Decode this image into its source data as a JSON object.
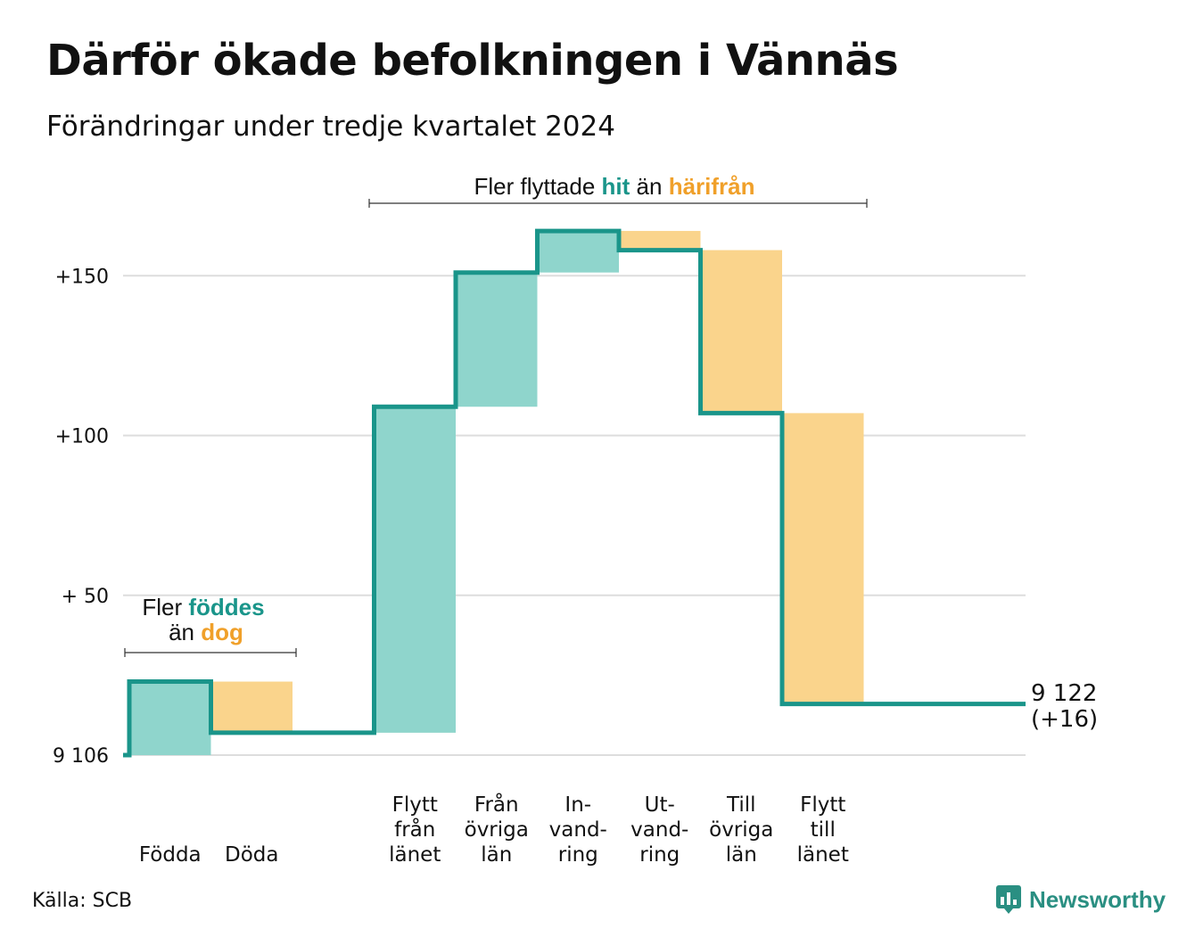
{
  "title": "Därför ökade befolkningen i Vännäs",
  "subtitle": "Förändringar under tredje kvartalet 2024",
  "source": "Källa: SCB",
  "logo": {
    "text": "Newsworthy",
    "icon": "newsworthy-logo-icon",
    "color": "#2a8f82"
  },
  "colors": {
    "increase": "#8fd5cc",
    "decrease": "#fad48c",
    "line": "#1a958a",
    "grid": "#dddddd"
  },
  "annotations": {
    "births": {
      "line1_prefix": "Fler ",
      "line1_highlight": "föddes",
      "line2_prefix": "än ",
      "line2_highlight": "dog"
    },
    "migration": {
      "prefix": "Fler flyttade ",
      "highlight1": "hit",
      "middle": " än ",
      "highlight2": "härifrån"
    }
  },
  "chart_data": {
    "type": "waterfall",
    "base_value": 9106,
    "y_ticks": [
      {
        "value": 0,
        "label": "9 106"
      },
      {
        "value": 50,
        "label": "+ 50"
      },
      {
        "value": 100,
        "label": "+100"
      },
      {
        "value": 150,
        "label": "+150"
      }
    ],
    "steps": [
      {
        "label_lines": [
          "Födda"
        ],
        "delta": 23,
        "group": "births"
      },
      {
        "label_lines": [
          "Döda"
        ],
        "delta": -16,
        "group": "births"
      },
      {
        "label_lines": [],
        "delta": 0,
        "group": "gap"
      },
      {
        "label_lines": [
          "Flytt",
          "från",
          "länet"
        ],
        "delta": 102,
        "group": "migration"
      },
      {
        "label_lines": [
          "Från",
          "övriga",
          "län"
        ],
        "delta": 42,
        "group": "migration"
      },
      {
        "label_lines": [
          "In-",
          "vand-",
          "ring"
        ],
        "delta": 13,
        "group": "migration"
      },
      {
        "label_lines": [
          "Ut-",
          "vand-",
          "ring"
        ],
        "delta": -6,
        "group": "migration"
      },
      {
        "label_lines": [
          "Till",
          "övriga",
          "län"
        ],
        "delta": -51,
        "group": "migration"
      },
      {
        "label_lines": [
          "Flytt",
          "till",
          "länet"
        ],
        "delta": -91,
        "group": "migration"
      }
    ],
    "end": {
      "label_line1": "9 122",
      "label_line2": "(+16)",
      "value": 16
    }
  }
}
